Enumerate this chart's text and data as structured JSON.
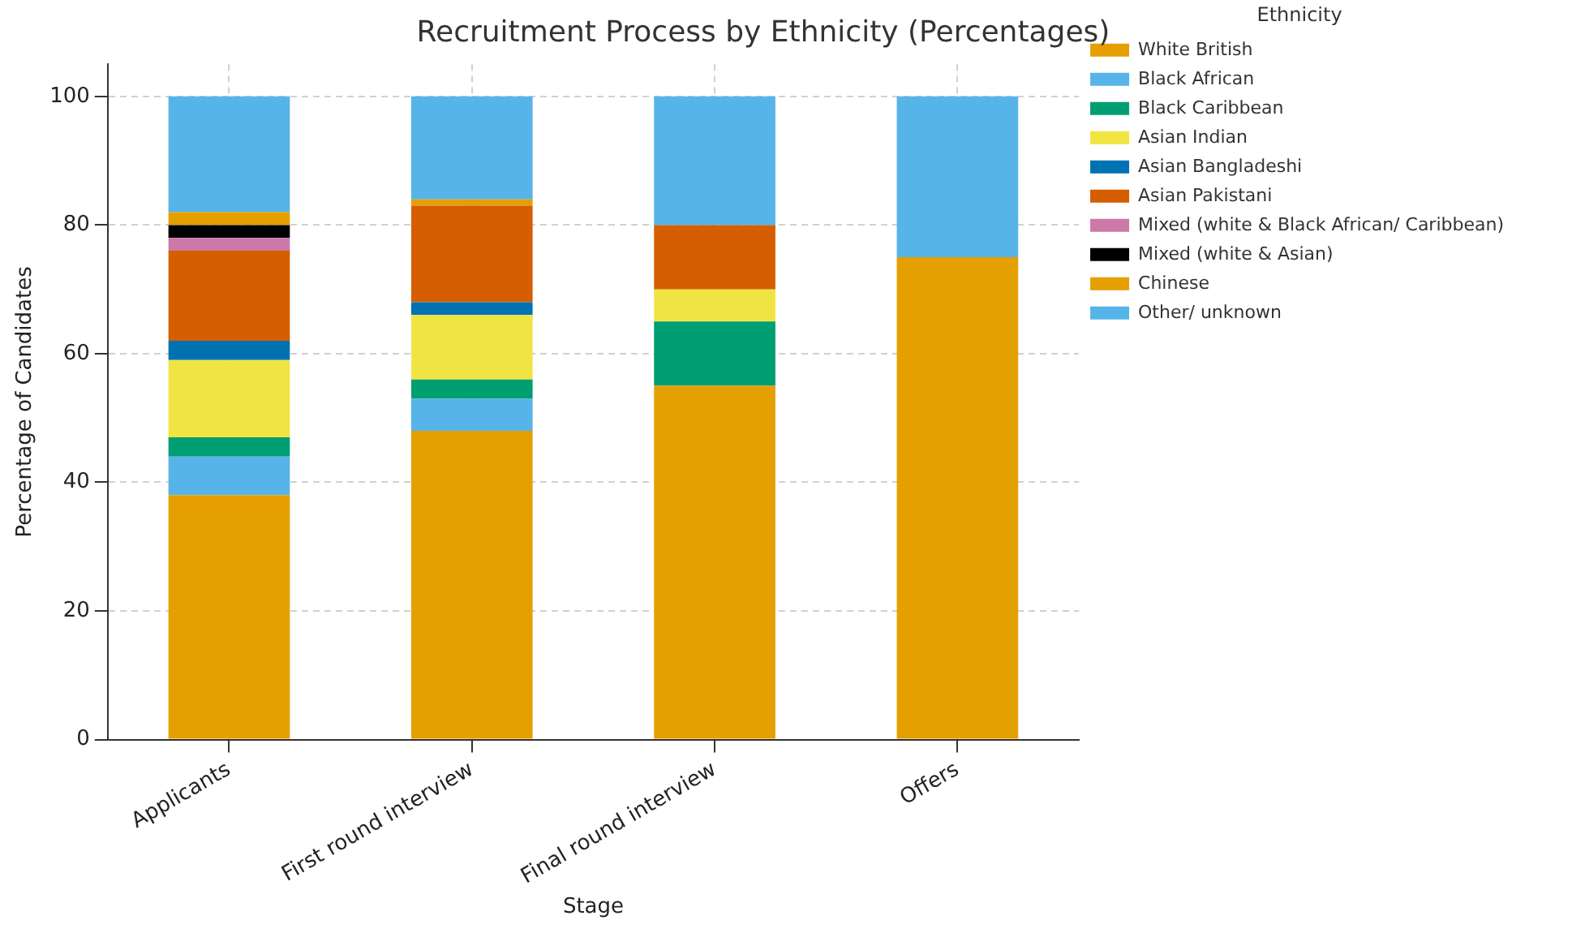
{
  "chart_data": {
    "type": "bar",
    "title": "Recruitment Process by Ethnicity (Percentages)",
    "xlabel": "Stage",
    "ylabel": "Percentage of Candidates",
    "legend_title": "Ethnicity",
    "categories": [
      "Applicants",
      "First round interview",
      "Final round interview",
      "Offers"
    ],
    "stacked": true,
    "ylim": [
      0,
      105
    ],
    "yticks": [
      0,
      20,
      40,
      60,
      80,
      100
    ],
    "grid": true,
    "legend": "right",
    "series": [
      {
        "name": "White British",
        "color": "#e69f00",
        "values": [
          38,
          48,
          55,
          75
        ]
      },
      {
        "name": "Black African",
        "color": "#56b4e9",
        "values": [
          6,
          5,
          0,
          0
        ]
      },
      {
        "name": "Black Caribbean",
        "color": "#009e73",
        "values": [
          3,
          3,
          10,
          0
        ]
      },
      {
        "name": "Asian Indian",
        "color": "#f0e442",
        "values": [
          12,
          10,
          5,
          0
        ]
      },
      {
        "name": "Asian Bangladeshi",
        "color": "#0072b2",
        "values": [
          3,
          2,
          0,
          0
        ]
      },
      {
        "name": "Asian Pakistani",
        "color": "#d55e00",
        "values": [
          14,
          15,
          10,
          0
        ]
      },
      {
        "name": "Mixed (white & Black African/ Caribbean)",
        "color": "#cc79a7",
        "values": [
          2,
          0,
          0,
          0
        ]
      },
      {
        "name": "Mixed (white & Asian)",
        "color": "#000000",
        "values": [
          2,
          0,
          0,
          0
        ]
      },
      {
        "name": "Chinese",
        "color": "#e69f00",
        "values": [
          2,
          1,
          0,
          0
        ]
      },
      {
        "name": "Other/ unknown",
        "color": "#56b4e9",
        "values": [
          18,
          16,
          20,
          25
        ]
      }
    ]
  }
}
